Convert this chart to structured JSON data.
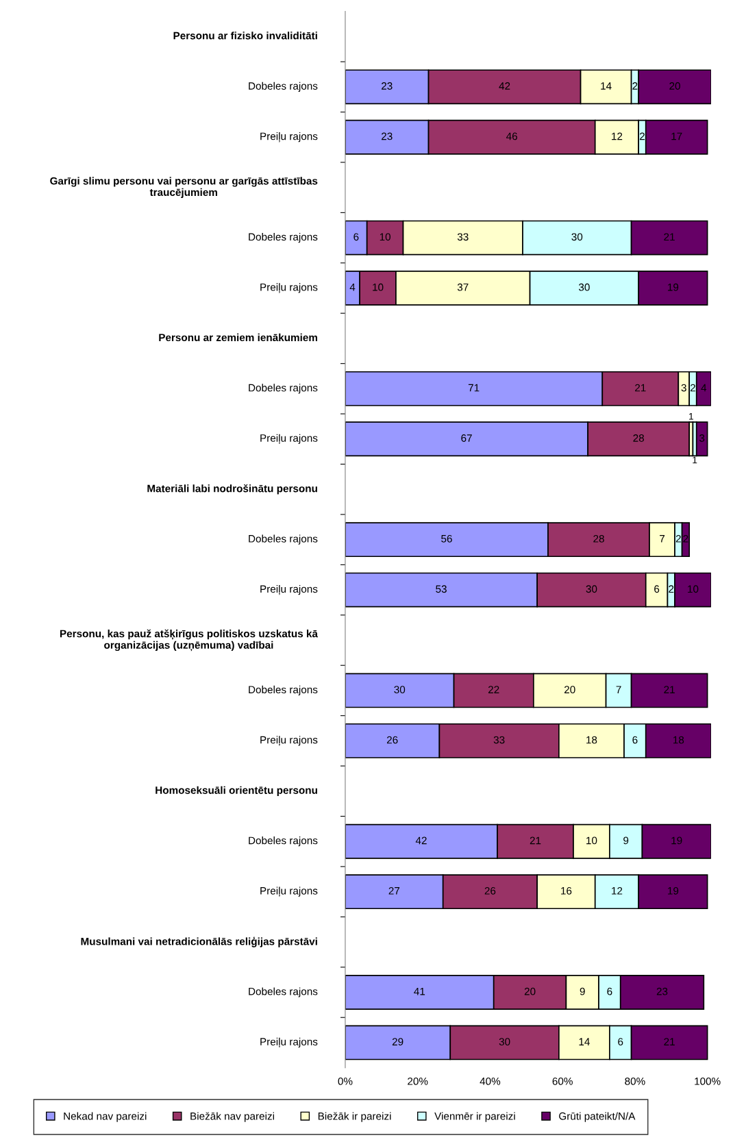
{
  "chart_data": {
    "type": "bar",
    "orientation": "horizontal",
    "stacked": true,
    "data_labels": true,
    "grid": false,
    "legend": "bottom",
    "categories": [
      "Personu ar fizisko invaliditāti",
      "Dobeles rajons",
      "Preiļu rajons",
      "Garīgi slimu personu vai personu ar garīgās attīstības\ntraucējumiem",
      "Dobeles rajons",
      "Preiļu rajons",
      "Personu ar zemiem ienākumiem",
      "Dobeles rajons",
      "Preiļu rajons",
      "Materiāli labi nodrošinātu personu",
      "Dobeles rajons",
      "Preiļu rajons",
      "Personu, kas pauž atšķirīgus politiskos uzskatus kā\norganizācijas (uzņēmuma) vadībai",
      "Dobeles rajons",
      "Preiļu rajons",
      "Homoseksuāli orientētu personu",
      "Dobeles rajons",
      "Preiļu rajons",
      "Musulmani vai netradicionālās reliģijas pārstāvi",
      "Dobeles rajons",
      "Preiļu rajons"
    ],
    "series": [
      {
        "name": "Nekad nav pareizi",
        "color": "#9999ff",
        "values": [
          null,
          23,
          23,
          null,
          6,
          4,
          null,
          71,
          67,
          null,
          56,
          53,
          null,
          30,
          26,
          null,
          42,
          27,
          null,
          41,
          29
        ]
      },
      {
        "name": "Biežāk nav pareizi",
        "color": "#993366",
        "values": [
          null,
          42,
          46,
          null,
          10,
          10,
          null,
          21,
          28,
          null,
          28,
          30,
          null,
          22,
          33,
          null,
          21,
          26,
          null,
          20,
          30
        ]
      },
      {
        "name": "Biežāk ir pareizi",
        "color": "#ffffcc",
        "values": [
          null,
          14,
          12,
          null,
          33,
          37,
          null,
          3,
          1,
          null,
          7,
          6,
          null,
          20,
          18,
          null,
          10,
          16,
          null,
          9,
          14
        ]
      },
      {
        "name": "Vienmēr ir pareizi",
        "color": "#ccffff",
        "values": [
          null,
          2,
          2,
          null,
          30,
          30,
          null,
          2,
          1,
          null,
          2,
          2,
          null,
          7,
          6,
          null,
          9,
          12,
          null,
          6,
          6
        ]
      },
      {
        "name": "Grūti pateikt/N/A",
        "color": "#660066",
        "values": [
          null,
          20,
          17,
          null,
          21,
          19,
          null,
          4,
          3,
          null,
          2,
          10,
          null,
          21,
          18,
          null,
          19,
          19,
          null,
          23,
          21
        ]
      }
    ],
    "xlim": [
      0,
      101
    ],
    "xticks": [
      {
        "value": 0,
        "label": "0%"
      },
      {
        "value": 20,
        "label": "20%"
      },
      {
        "value": 40,
        "label": "40%"
      },
      {
        "value": 60,
        "label": "60%"
      },
      {
        "value": 80,
        "label": "80%"
      },
      {
        "value": 100,
        "label": "100%"
      }
    ]
  }
}
